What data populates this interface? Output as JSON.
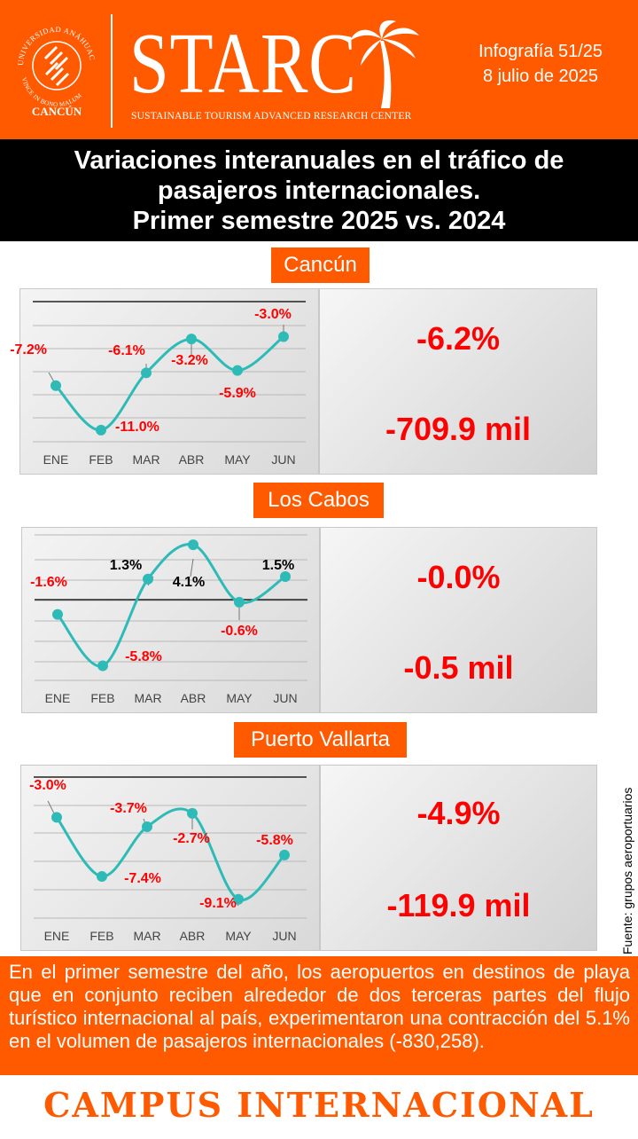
{
  "header": {
    "logo_text": {
      "arc": "UNIVERSIDAD ANÁHUAC",
      "motto": "VINCE IN BONO MALUM",
      "campus": "CANCÚN"
    },
    "brand": "STARC",
    "brand_tagline": "SUSTAINABLE TOURISM ADVANCED RESEARCH CENTER",
    "issue": "Infografía 51/25",
    "date": "8 julio de 2025"
  },
  "title": {
    "line1": "Variaciones interanuales en el tráfico de",
    "line2": "pasajeros internacionales.",
    "line3": "Primer semestre 2025 vs. 2024"
  },
  "source_note": "Fuente: grupos aeroportuarios",
  "summary_text": "En el primer semestre del año, los aeropuertos en destinos de playa que en conjunto reciben alrededor de dos terceras partes del flujo turístico internacional al país, experimentaron una contracción del 5.1% en el volumen de pasajeros internacionales (-830,258).",
  "footer": "CAMPUS INTERNACIONAL",
  "colors": {
    "brand_orange": "#ff5a00",
    "negative_label": "#ff0000",
    "positive_label": "#000000",
    "line": "#2ebbb7"
  },
  "chart_data": [
    {
      "type": "line",
      "city": "Cancún",
      "categories": [
        "ENE",
        "FEB",
        "MAR",
        "ABR",
        "MAY",
        "JUN"
      ],
      "values": [
        -7.2,
        -11.0,
        -6.1,
        -3.2,
        -5.9,
        -3.0
      ],
      "labels": [
        "-7.2%",
        "-11.0%",
        "-6.1%",
        "-3.2%",
        "-5.9%",
        "-3.0%"
      ],
      "reference_line": 0,
      "summary": {
        "percent": "-6.2%",
        "absolute": "-709.9 mil"
      }
    },
    {
      "type": "line",
      "city": "Los Cabos",
      "categories": [
        "ENE",
        "FEB",
        "MAR",
        "ABR",
        "MAY",
        "JUN"
      ],
      "values": [
        -1.6,
        -5.8,
        1.3,
        4.1,
        -0.6,
        1.5
      ],
      "labels": [
        "-1.6%",
        "-5.8%",
        "1.3%",
        "4.1%",
        "-0.6%",
        "1.5%"
      ],
      "reference_line": 0,
      "summary": {
        "percent": "-0.0%",
        "absolute": "-0.5 mil"
      }
    },
    {
      "type": "line",
      "city": "Puerto Vallarta",
      "categories": [
        "ENE",
        "FEB",
        "MAR",
        "ABR",
        "MAY",
        "JUN"
      ],
      "values": [
        -3.0,
        -7.4,
        -3.7,
        -2.7,
        -9.1,
        -5.8
      ],
      "labels": [
        "-3.0%",
        "-7.4%",
        "-3.7%",
        "-2.7%",
        "-9.1%",
        "-5.8%"
      ],
      "reference_line": 0,
      "summary": {
        "percent": "-4.9%",
        "absolute": "-119.9 mil"
      }
    }
  ]
}
